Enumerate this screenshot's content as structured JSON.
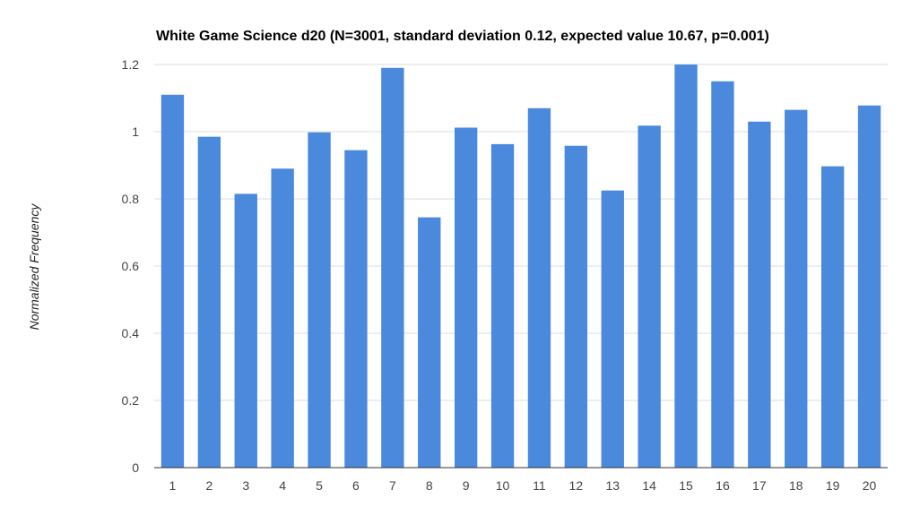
{
  "chart_data": {
    "type": "bar",
    "title": "White Game Science d20 (N=3001, standard deviation 0.12, expected value 10.67, p=0.001)",
    "xlabel": "",
    "ylabel": "Normalized Frequency",
    "categories": [
      "1",
      "2",
      "3",
      "4",
      "5",
      "6",
      "7",
      "8",
      "9",
      "10",
      "11",
      "12",
      "13",
      "14",
      "15",
      "16",
      "17",
      "18",
      "19",
      "20"
    ],
    "values": [
      1.11,
      0.985,
      0.815,
      0.89,
      0.998,
      0.945,
      1.19,
      0.745,
      1.012,
      0.963,
      1.07,
      0.958,
      0.825,
      1.018,
      1.2,
      1.15,
      1.03,
      1.065,
      0.897,
      1.078
    ],
    "ylim": [
      0,
      1.2
    ],
    "yticks": [
      0,
      0.2,
      0.4,
      0.6,
      0.8,
      1,
      1.2
    ],
    "ytick_labels": [
      "0",
      "0.2",
      "0.4",
      "0.6",
      "0.8",
      "1",
      "1.2"
    ],
    "grid": true,
    "legend": "none",
    "colors": {
      "bar": "#4a89dc",
      "grid": "#dddddd",
      "axis": "#333333"
    }
  }
}
